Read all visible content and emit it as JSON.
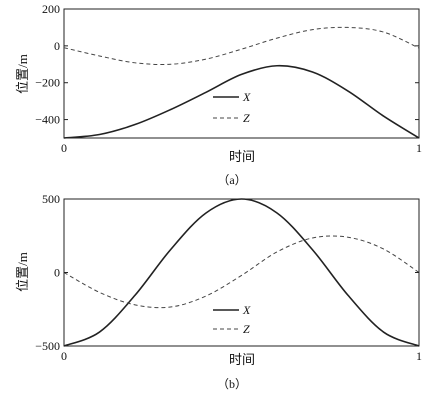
{
  "chart_data": [
    {
      "type": "line",
      "panel": "a",
      "caption": "（a）",
      "xlabel": "时间",
      "ylabel": "位置/m",
      "xlim": [
        0,
        1
      ],
      "ylim": [
        -500,
        200
      ],
      "x_ticks": [
        "0",
        "1"
      ],
      "y_ticks": [
        "200",
        "0",
        "−200",
        "−400"
      ],
      "legend": {
        "placement": "center",
        "entries": [
          {
            "label": "X",
            "style": "solid"
          },
          {
            "label": "Z",
            "style": "dashed"
          }
        ]
      },
      "grid": false,
      "x": [
        0,
        0.1,
        0.2,
        0.3,
        0.4,
        0.5,
        0.6,
        0.7,
        0.8,
        0.9,
        1.0
      ],
      "series": [
        {
          "name": "X",
          "style": "solid",
          "values": [
            -500,
            -481,
            -427,
            -346,
            -252,
            -155,
            -108,
            -142,
            -245,
            -381,
            -500
          ]
        },
        {
          "name": "Z",
          "style": "dashed",
          "values": [
            -10,
            -55,
            -92,
            -100,
            -72,
            -18,
            42,
            88,
            100,
            75,
            -12
          ]
        }
      ]
    },
    {
      "type": "line",
      "panel": "b",
      "caption": "（b）",
      "xlabel": "时间",
      "ylabel": "位置/m",
      "xlim": [
        0,
        1
      ],
      "ylim": [
        -500,
        500
      ],
      "x_ticks": [
        "0",
        "1"
      ],
      "y_ticks": [
        "500",
        "0",
        "−500"
      ],
      "legend": {
        "placement": "bottom-center",
        "entries": [
          {
            "label": "X",
            "style": "solid"
          },
          {
            "label": "Z",
            "style": "dashed"
          }
        ]
      },
      "grid": false,
      "x": [
        0,
        0.1,
        0.2,
        0.3,
        0.4,
        0.5,
        0.6,
        0.7,
        0.8,
        0.9,
        1.0
      ],
      "series": [
        {
          "name": "X",
          "style": "solid",
          "values": [
            -500,
            -405,
            -155,
            155,
            405,
            500,
            405,
            155,
            -155,
            -405,
            -500
          ]
        },
        {
          "name": "Z",
          "style": "dashed",
          "values": [
            0,
            -135,
            -220,
            -235,
            -160,
            -20,
            140,
            235,
            240,
            160,
            0
          ]
        }
      ]
    }
  ]
}
